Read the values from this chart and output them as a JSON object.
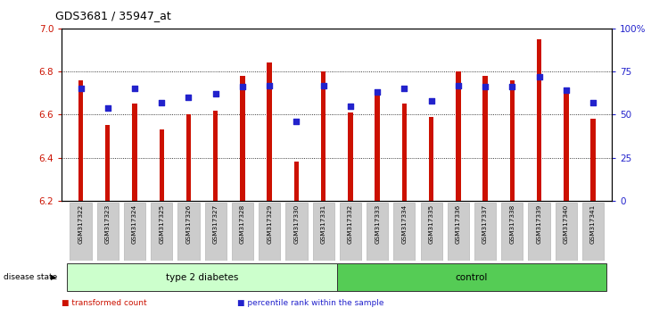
{
  "title": "GDS3681 / 35947_at",
  "samples": [
    "GSM317322",
    "GSM317323",
    "GSM317324",
    "GSM317325",
    "GSM317326",
    "GSM317327",
    "GSM317328",
    "GSM317329",
    "GSM317330",
    "GSM317331",
    "GSM317332",
    "GSM317333",
    "GSM317334",
    "GSM317335",
    "GSM317336",
    "GSM317337",
    "GSM317338",
    "GSM317339",
    "GSM317340",
    "GSM317341"
  ],
  "bar_values": [
    6.76,
    6.55,
    6.65,
    6.53,
    6.6,
    6.62,
    6.78,
    6.84,
    6.38,
    6.8,
    6.61,
    6.7,
    6.65,
    6.59,
    6.8,
    6.78,
    6.76,
    6.95,
    6.71,
    6.58
  ],
  "percentile_values": [
    65,
    54,
    65,
    57,
    60,
    62,
    66,
    67,
    46,
    67,
    55,
    63,
    65,
    58,
    67,
    66,
    66,
    72,
    64,
    57
  ],
  "bar_color": "#cc1100",
  "percentile_color": "#2222cc",
  "ymin": 6.2,
  "ymax": 7.0,
  "y_ticks": [
    6.2,
    6.4,
    6.6,
    6.8,
    7.0
  ],
  "y_ticks_right": [
    0,
    25,
    50,
    75,
    100
  ],
  "y_ticks_right_labels": [
    "0",
    "25",
    "50",
    "75",
    "100%"
  ],
  "groups": [
    {
      "label": "type 2 diabetes",
      "start": 0,
      "end": 9,
      "color": "#ccffcc"
    },
    {
      "label": "control",
      "start": 10,
      "end": 19,
      "color": "#55cc55"
    }
  ],
  "legend_items": [
    {
      "label": "transformed count",
      "color": "#cc1100"
    },
    {
      "label": "percentile rank within the sample",
      "color": "#2222cc"
    }
  ],
  "disease_state_label": "disease state",
  "bar_width": 0.18,
  "background_color": "#ffffff",
  "plot_bg_color": "#ffffff",
  "axis_label_color_left": "#cc1100",
  "axis_label_color_right": "#2222cc"
}
